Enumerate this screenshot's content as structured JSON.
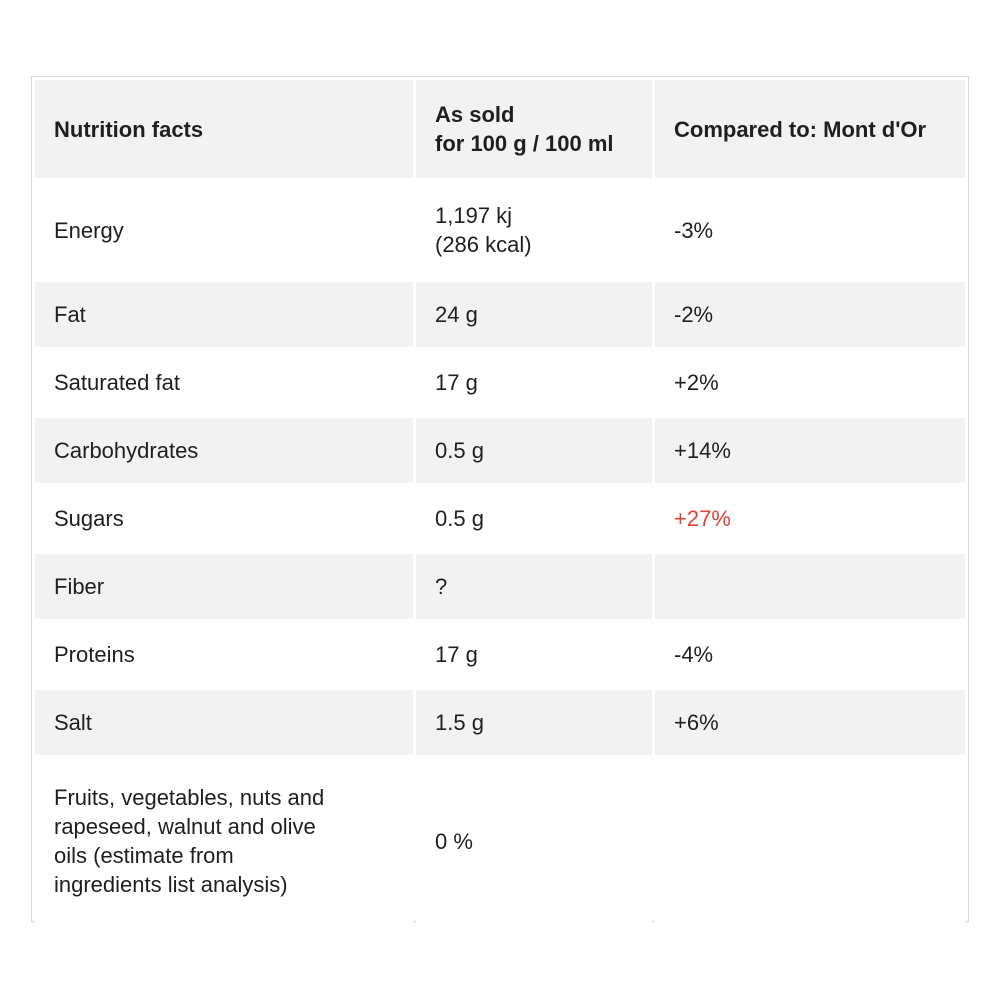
{
  "table": {
    "headers": {
      "nutrient": "Nutrition facts",
      "as_sold_line1": "As sold",
      "as_sold_line2": "for 100 g / 100 ml",
      "compared": "Compared to: Mont d'Or"
    },
    "rows": [
      {
        "nutrient": "Energy",
        "value_line1": "1,197 kj",
        "value_line2": "(286 kcal)",
        "compared": "-3%"
      },
      {
        "nutrient": "Fat",
        "value": "24 g",
        "compared": "-2%"
      },
      {
        "nutrient": "Saturated fat",
        "value": "17 g",
        "compared": "+2%"
      },
      {
        "nutrient": "Carbohydrates",
        "value": "0.5 g",
        "compared": "+14%"
      },
      {
        "nutrient": "Sugars",
        "value": "0.5 g",
        "compared": "+27%",
        "compared_color": "#e0423a"
      },
      {
        "nutrient": "Fiber",
        "value": "?",
        "compared": ""
      },
      {
        "nutrient": "Proteins",
        "value": "17 g",
        "compared": "-4%"
      },
      {
        "nutrient": "Salt",
        "value": "1.5 g",
        "compared": "+6%"
      },
      {
        "nutrient_lines": [
          "Fruits, vegetables, nuts and",
          "rapeseed, walnut and olive",
          "oils (estimate from",
          "ingredients list analysis)"
        ],
        "value": "0 %",
        "compared": ""
      }
    ]
  }
}
